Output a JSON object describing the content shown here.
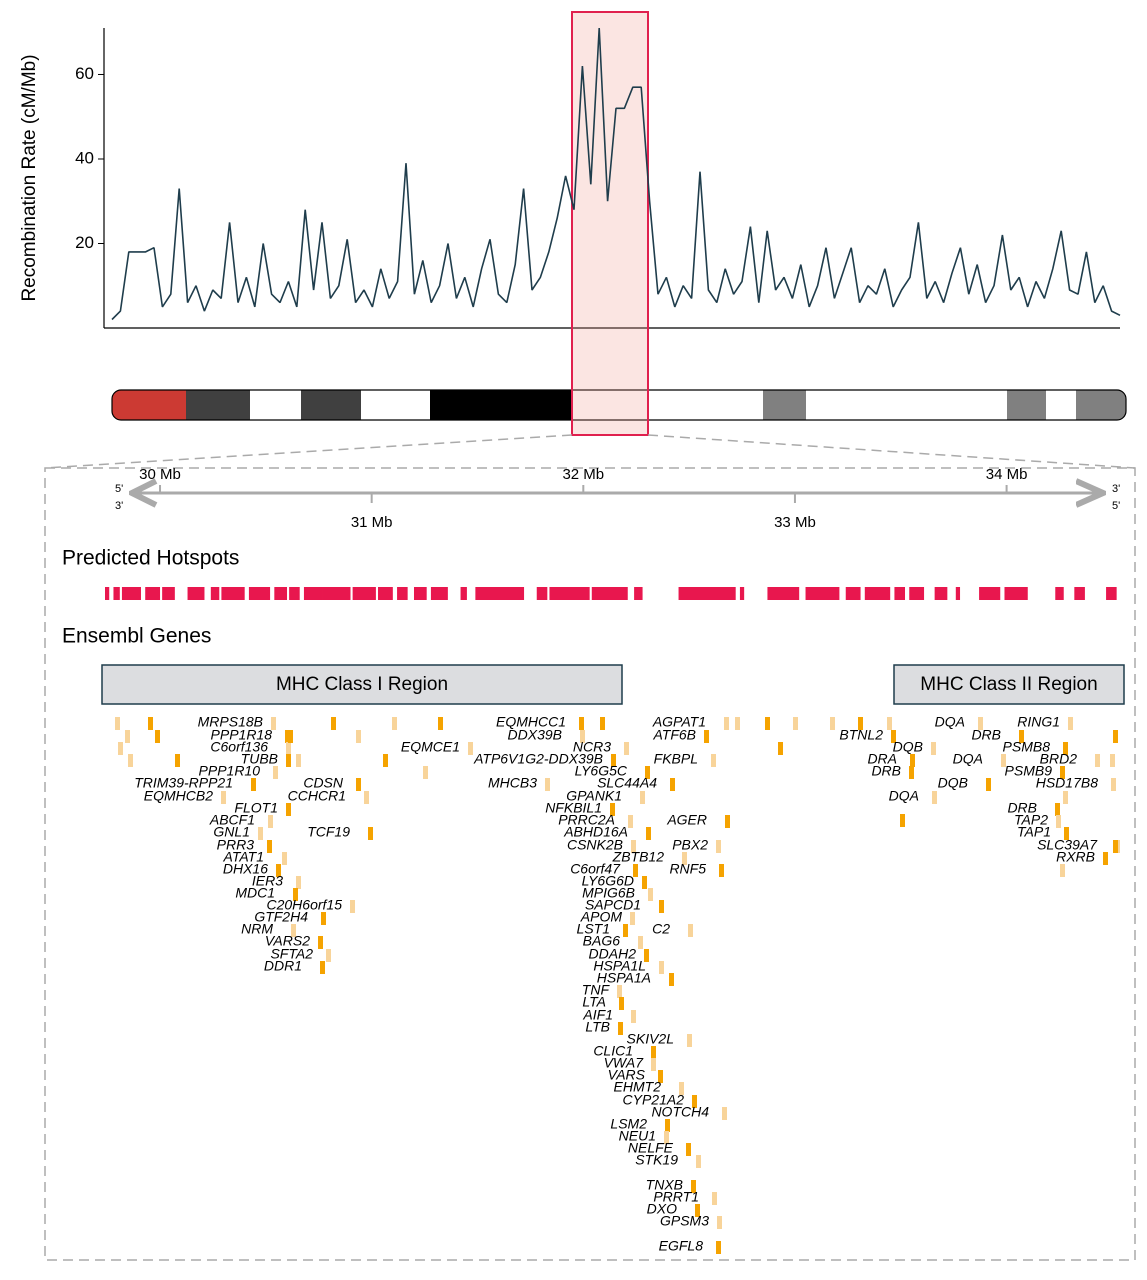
{
  "chart_data": [
    {
      "type": "line",
      "ylabel": "Recombination Rate (cM/Mb)",
      "color": "#1f3d4c",
      "ylim": [
        0,
        71
      ],
      "yticks": [
        20,
        40,
        60
      ],
      "values": [
        2,
        4,
        18,
        18,
        18,
        19,
        5,
        8,
        33,
        6,
        10,
        4,
        9,
        7,
        25,
        6,
        12,
        5,
        20,
        8,
        6,
        11,
        5,
        28,
        9,
        25,
        7,
        10,
        21,
        6,
        9,
        5,
        14,
        7,
        11,
        39,
        8,
        16,
        6,
        10,
        20,
        7,
        12,
        5,
        14,
        21,
        8,
        6,
        15,
        33,
        9,
        12,
        18,
        26,
        36,
        28,
        62,
        34,
        71,
        30,
        52,
        52,
        57,
        57,
        30,
        8,
        12,
        5,
        10,
        7,
        37,
        9,
        6,
        14,
        8,
        11,
        24,
        6,
        23,
        9,
        12,
        7,
        15,
        5,
        10,
        19,
        7,
        13,
        19,
        6,
        10,
        8,
        14,
        5,
        9,
        12,
        25,
        7,
        11,
        6,
        13,
        19,
        8,
        15,
        6,
        10,
        22,
        9,
        12,
        5,
        11,
        7,
        14,
        23,
        9,
        8,
        18,
        6,
        10,
        4,
        3
      ]
    },
    {
      "type": "genome-track",
      "xlim": [
        29.74,
        34.55
      ],
      "xticks": [
        {
          "value": 30,
          "label": "30 Mb"
        },
        {
          "value": 31,
          "label": "31 Mb"
        },
        {
          "value": 32,
          "label": "32 Mb"
        },
        {
          "value": 33,
          "label": "33 Mb"
        },
        {
          "value": 34,
          "label": "34 Mb"
        }
      ],
      "strands": [
        "5'",
        "3'"
      ],
      "tracks": [
        "Predicted Hotspots",
        "Ensembl Genes"
      ],
      "hotspot_color": "#e8174e",
      "hotspots": [
        [
          29.74,
          29.76
        ],
        [
          29.78,
          29.81
        ],
        [
          29.82,
          29.91
        ],
        [
          29.93,
          30.0
        ],
        [
          30.01,
          30.07
        ],
        [
          30.13,
          30.21
        ],
        [
          30.24,
          30.28
        ],
        [
          30.29,
          30.4
        ],
        [
          30.42,
          30.52
        ],
        [
          30.54,
          30.6
        ],
        [
          30.61,
          30.66
        ],
        [
          30.68,
          30.77
        ],
        [
          30.77,
          30.9
        ],
        [
          30.91,
          31.02
        ],
        [
          31.03,
          31.1
        ],
        [
          31.12,
          31.17
        ],
        [
          31.2,
          31.26
        ],
        [
          31.28,
          31.36
        ],
        [
          31.42,
          31.45
        ],
        [
          31.49,
          31.72
        ],
        [
          31.78,
          31.83
        ],
        [
          31.84,
          32.03
        ],
        [
          32.04,
          32.21
        ],
        [
          32.24,
          32.28
        ],
        [
          32.45,
          32.72
        ],
        [
          32.74,
          32.76
        ],
        [
          32.87,
          33.02
        ],
        [
          33.05,
          33.21
        ],
        [
          33.24,
          33.31
        ],
        [
          33.33,
          33.45
        ],
        [
          33.47,
          33.52
        ],
        [
          33.54,
          33.61
        ],
        [
          33.66,
          33.72
        ],
        [
          33.76,
          33.78
        ],
        [
          33.87,
          33.97
        ],
        [
          33.99,
          34.1
        ],
        [
          34.23,
          34.27
        ],
        [
          34.32,
          34.37
        ],
        [
          34.47,
          34.52
        ]
      ],
      "regions": [
        "MHC Class I Region",
        "MHC Class II Region"
      ],
      "genes": [
        "MRPS18B",
        "PPP1R18",
        "C6orf136",
        "TUBB",
        "PPP1R10",
        "TRIM39-RPP21",
        "EQMHCB2",
        "CDSN",
        "CCHCR1",
        "FLOT1",
        "ABCF1",
        "TCF19",
        "GNL1",
        "PRR3",
        "ATAT1",
        "DHX16",
        "IER3",
        "MDC1",
        "C20H6orf15",
        "GTF2H4",
        "NRM",
        "VARS2",
        "SFTA2",
        "DDR1",
        "EQMCE1",
        "EQMHCC1",
        "DDX39B",
        "ATP6V1G2-DDX39B",
        "NCR3",
        "LY6G5C",
        "MHCB3",
        "SLC44A4",
        "GPANK1",
        "NFKBIL1",
        "PRRC2A",
        "ABHD16A",
        "CSNK2B",
        "C6orf47",
        "ZBTB12",
        "LY6G6D",
        "MPIG6B",
        "SAPCD1",
        "APOM",
        "LST1",
        "BAG6",
        "DDAH2",
        "HSPA1L",
        "HSPA1A",
        "TNF",
        "LTA",
        "AIF1",
        "LTB",
        "SKIV2L",
        "CLIC1",
        "VWA7",
        "VARS",
        "EHMT2",
        "CYP21A2",
        "NOTCH4",
        "LSM2",
        "NEU1",
        "NELFE",
        "STK19",
        "TNXB",
        "PRRT1",
        "DXO",
        "GPSM3",
        "EGFL8",
        "AGPAT1",
        "ATF6B",
        "FKBPL",
        "AGER",
        "PBX2",
        "RNF5",
        "C2",
        "BTNL2",
        "DQA",
        "DRB",
        "DQB",
        "DRA",
        "DQA",
        "DRB",
        "DQA",
        "DQB",
        "RING1",
        "PSMB8",
        "BRD2",
        "PSMB9",
        "HSD17B8",
        "DRB",
        "TAP2",
        "TAP1",
        "SLC39A7",
        "RXRB"
      ]
    }
  ]
}
